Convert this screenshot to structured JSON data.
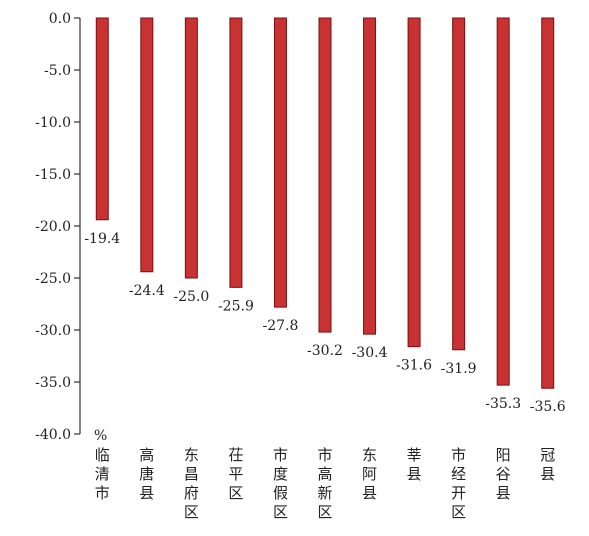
{
  "chart_data": {
    "type": "bar",
    "title": "",
    "xlabel": "",
    "ylabel": "",
    "unit": "%",
    "ylim": [
      -40,
      0
    ],
    "yticks": [
      0,
      -5,
      -10,
      -15,
      -20,
      -25,
      -30,
      -35,
      -40
    ],
    "ytick_labels": [
      "0.0",
      "-5.0",
      "-10.0",
      "-15.0",
      "-20.0",
      "-25.0",
      "-30.0",
      "-35.0",
      "-40.0"
    ],
    "categories": [
      "临清市",
      "高唐县",
      "东昌府区",
      "茌平区",
      "市度假区",
      "市高新区",
      "东阿县",
      "莘县",
      "市经开区",
      "阳谷县",
      "冠县"
    ],
    "values": [
      -19.4,
      -24.4,
      -25.0,
      -25.9,
      -27.8,
      -30.2,
      -30.4,
      -31.6,
      -31.9,
      -35.3,
      -35.6
    ],
    "value_labels": [
      "-19.4",
      "-24.4",
      "-25.0",
      "-25.9",
      "-27.8",
      "-30.2",
      "-30.4",
      "-31.6",
      "-31.9",
      "-35.3",
      "-35.6"
    ],
    "bar_color": "#c83232",
    "bar_edge_color": "#7a1010",
    "grid": false,
    "legend": "none"
  }
}
